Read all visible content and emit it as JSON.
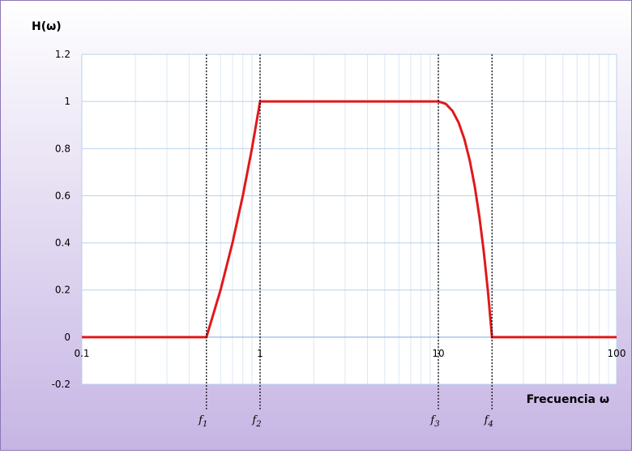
{
  "chart_data": {
    "type": "line",
    "title": "H(ω)",
    "x_label": "Frecuencia ω",
    "x": [
      0.1,
      0.5,
      0.6,
      0.7,
      0.8,
      0.9,
      1,
      10,
      11,
      12,
      13,
      14,
      15,
      16,
      17,
      18,
      19,
      20,
      100
    ],
    "series": [
      {
        "name": "H",
        "color": "#e0191b",
        "values": [
          0,
          0,
          0.2,
          0.4,
          0.6,
          0.8,
          1,
          1,
          0.99,
          0.96,
          0.91,
          0.84,
          0.75,
          0.64,
          0.51,
          0.36,
          0.19,
          0,
          0
        ]
      }
    ],
    "xlim": [
      0.1,
      100
    ],
    "xticks": [
      0.1,
      1,
      10,
      100
    ],
    "x_log": true,
    "ylim": [
      -0.2,
      1.2
    ],
    "yticks": [
      -0.2,
      0,
      0.2,
      0.4,
      0.6,
      0.8,
      1,
      1.2
    ],
    "grid": true,
    "annotations": [
      {
        "x": 0.5,
        "label": "f",
        "subscript": "1"
      },
      {
        "x": 1,
        "label": "f",
        "subscript": "2"
      },
      {
        "x": 10,
        "label": "f",
        "subscript": "3"
      },
      {
        "x": 20,
        "label": "f",
        "subscript": "4"
      }
    ]
  }
}
